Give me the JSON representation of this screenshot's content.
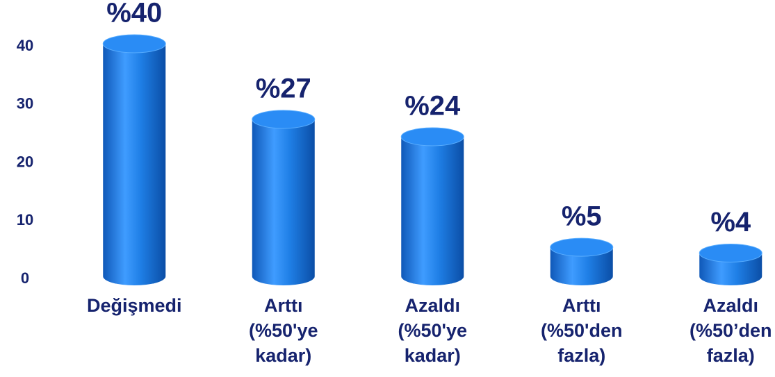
{
  "chart_data": {
    "type": "bar",
    "categories": [
      [
        "Değişmedi"
      ],
      [
        "Arttı",
        "(%50'ye",
        "kadar)"
      ],
      [
        "Azaldı",
        "(%50'ye",
        "kadar)"
      ],
      [
        "Arttı",
        "(%50'den",
        "fazla)"
      ],
      [
        "Azaldı",
        "(%50’den",
        "fazla)"
      ]
    ],
    "values": [
      40,
      27,
      24,
      5,
      4
    ],
    "value_labels": [
      "%40",
      "%27",
      "%24",
      "%5",
      "%4"
    ],
    "color": "#1f7fe6",
    "ylim": [
      0,
      40
    ],
    "yticks": [
      0,
      10,
      20,
      30,
      40
    ],
    "grid": false
  }
}
